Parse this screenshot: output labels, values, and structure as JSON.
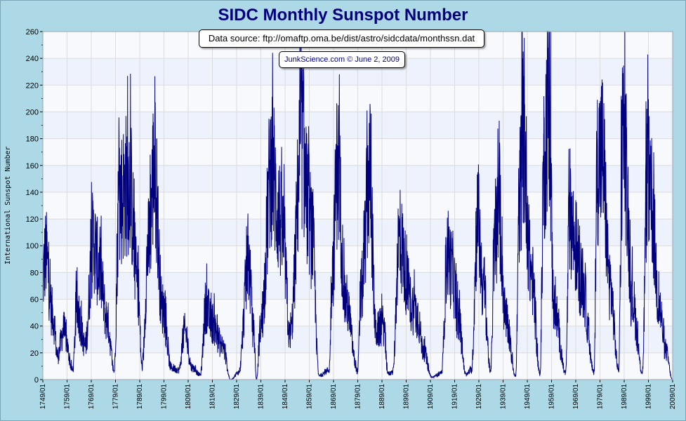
{
  "chart_data": {
    "type": "line",
    "title": "SIDC Monthly Sunspot Number",
    "ylabel": "International Sunspot Number",
    "xlabel": "",
    "ylim": [
      0,
      260
    ],
    "xlim": [
      "1749/01",
      "2009/01"
    ],
    "y_ticks": [
      0,
      20,
      40,
      60,
      80,
      100,
      120,
      140,
      160,
      180,
      200,
      220,
      240,
      260
    ],
    "x_tick_labels": [
      "1749/01",
      "1759/01",
      "1769/01",
      "1779/01",
      "1789/01",
      "1799/01",
      "1809/01",
      "1819/01",
      "1829/01",
      "1839/01",
      "1849/01",
      "1859/01",
      "1869/01",
      "1879/01",
      "1889/01",
      "1899/01",
      "1909/01",
      "1919/01",
      "1929/01",
      "1939/01",
      "1949/01",
      "1959/01",
      "1969/01",
      "1979/01",
      "1989/01",
      "1999/01",
      "2009/01"
    ],
    "grid": true,
    "legend": "none",
    "series_color": "#00007f",
    "annotations": {
      "source": "Data source: ftp://omaftp.oma.be/dist/astro/sidcdata/monthssn.dat",
      "credit": "JunkScience.com © June 2, 2009"
    },
    "series": [
      {
        "sampling": "monthly; approximate envelope of solar-cycle maxima and minima read from chart",
        "x": [
          1749.0,
          1750.2,
          1753.0,
          1755.1,
          1757.5,
          1761.4,
          1763.0,
          1766.5,
          1769.8,
          1772.0,
          1775.5,
          1778.4,
          1780.5,
          1784.7,
          1788.1,
          1790.0,
          1792.5,
          1795.0,
          1798.3,
          1802.0,
          1805.2,
          1807.5,
          1810.6,
          1814.0,
          1816.4,
          1818.5,
          1823.3,
          1826.5,
          1829.9,
          1833.9,
          1836.0,
          1837.2,
          1839.0,
          1843.5,
          1846.0,
          1848.1,
          1851.0,
          1856.0,
          1858.0,
          1860.1,
          1863.0,
          1867.2,
          1868.5,
          1870.6,
          1874.0,
          1878.9,
          1880.5,
          1883.9,
          1886.5,
          1889.6,
          1891.5,
          1893.5,
          1896.0,
          1901.7,
          1903.5,
          1906.0,
          1909.5,
          1913.6,
          1916.0,
          1918.0,
          1920.5,
          1923.6,
          1926.0,
          1928.4,
          1931.0,
          1933.8,
          1935.5,
          1937.4,
          1940.0,
          1944.2,
          1945.8,
          1947.3,
          1950.5,
          1954.3,
          1955.8,
          1957.8,
          1960.0,
          1964.8,
          1966.5,
          1968.9,
          1971.5,
          1976.5,
          1978.0,
          1979.9,
          1983.0,
          1986.7,
          1988.3,
          1989.6,
          1992.0,
          1996.5,
          1998.5,
          2000.3,
          2003.5,
          2006.0,
          2008.9
        ],
        "values": [
          85,
          103,
          55,
          20,
          40,
          8,
          60,
          28,
          115,
          95,
          50,
          7,
          150,
          165,
          80,
          10,
          110,
          175,
          60,
          10,
          8,
          40,
          10,
          4,
          62,
          48,
          27,
          0,
          6,
          97,
          40,
          0,
          45,
          180,
          140,
          120,
          35,
          200,
          150,
          120,
          3,
          8,
          90,
          175,
          65,
          7,
          75,
          170,
          40,
          45,
          5,
          6,
          115,
          60,
          55,
          25,
          2,
          5,
          105,
          90,
          50,
          4,
          8,
          132,
          75,
          6,
          108,
          140,
          50,
          3,
          152,
          200,
          90,
          4,
          180,
          235,
          60,
          5,
          140,
          110,
          80,
          6,
          180,
          188,
          80,
          8,
          200,
          180,
          70,
          6,
          170,
          140,
          60,
          25,
          0
        ]
      }
    ]
  }
}
